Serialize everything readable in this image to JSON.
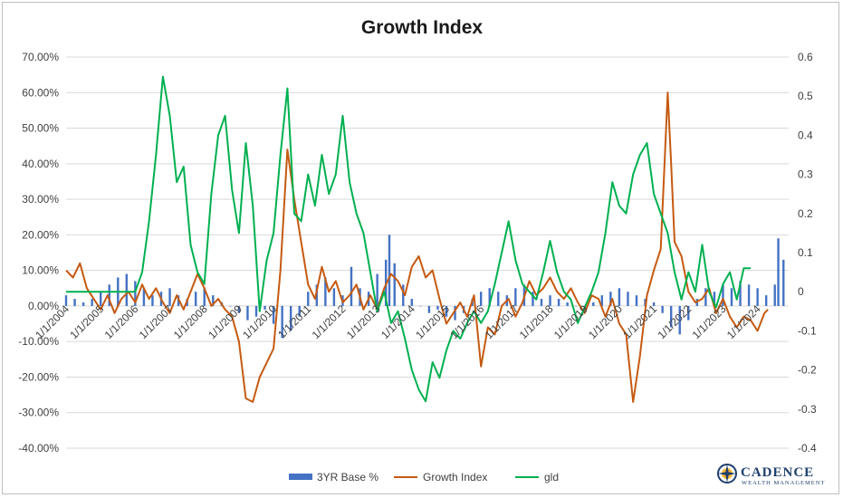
{
  "chart_data": {
    "type": "bar+line",
    "title": "Growth Index",
    "y_left": {
      "ticks": [
        "70.00%",
        "60.00%",
        "50.00%",
        "40.00%",
        "30.00%",
        "20.00%",
        "10.00%",
        "0.00%",
        "-10.00%",
        "-20.00%",
        "-30.00%",
        "-40.00%"
      ],
      "range": [
        -0.4,
        0.7
      ]
    },
    "y_right": {
      "ticks": [
        "0.6",
        "0.5",
        "0.4",
        "0.3",
        "0.2",
        "0.1",
        "0",
        "-0.1",
        "-0.2",
        "-0.3",
        "-0.4"
      ],
      "range": [
        -0.4,
        0.6
      ]
    },
    "x_ticks": [
      "1/1/2004",
      "1/1/2005",
      "1/1/2006",
      "1/1/2007",
      "1/1/2008",
      "1/1/2009",
      "1/1/2010",
      "1/1/2011",
      "1/1/2012",
      "1/1/2013",
      "1/1/2014",
      "1/1/2015",
      "1/1/2016",
      "1/1/2017",
      "1/1/2018",
      "1/1/2019",
      "1/1/2020",
      "1/1/2021",
      "1/1/2022",
      "1/1/2023",
      "1/1/2024"
    ],
    "x_range": [
      2004.0,
      2024.9
    ],
    "grid": true,
    "legend_position": "bottom",
    "series": [
      {
        "name": "3YR Base %",
        "type": "bar",
        "axis": "left",
        "color": "#4472c4",
        "points": [
          [
            2004.0,
            0.03
          ],
          [
            2004.25,
            0.02
          ],
          [
            2004.5,
            0.01
          ],
          [
            2004.75,
            0.02
          ],
          [
            2005.0,
            0.04
          ],
          [
            2005.25,
            0.06
          ],
          [
            2005.5,
            0.08
          ],
          [
            2005.75,
            0.09
          ],
          [
            2006.0,
            0.07
          ],
          [
            2006.25,
            0.05
          ],
          [
            2006.5,
            0.03
          ],
          [
            2006.75,
            0.04
          ],
          [
            2007.0,
            0.05
          ],
          [
            2007.25,
            0.03
          ],
          [
            2007.5,
            0.02
          ],
          [
            2007.75,
            0.04
          ],
          [
            2008.0,
            0.05
          ],
          [
            2008.25,
            0.03
          ],
          [
            2008.5,
            0.01
          ],
          [
            2008.75,
            0.0
          ],
          [
            2009.0,
            -0.02
          ],
          [
            2009.25,
            -0.04
          ],
          [
            2009.5,
            -0.03
          ],
          [
            2009.75,
            -0.01
          ],
          [
            2010.0,
            -0.05
          ],
          [
            2010.25,
            -0.09
          ],
          [
            2010.5,
            -0.07
          ],
          [
            2010.75,
            -0.03
          ],
          [
            2011.0,
            0.04
          ],
          [
            2011.25,
            0.06
          ],
          [
            2011.5,
            0.08
          ],
          [
            2011.75,
            0.05
          ],
          [
            2012.0,
            0.03
          ],
          [
            2012.25,
            0.11
          ],
          [
            2012.5,
            0.05
          ],
          [
            2012.75,
            0.04
          ],
          [
            2013.0,
            0.09
          ],
          [
            2013.25,
            0.13
          ],
          [
            2013.35,
            0.2
          ],
          [
            2013.5,
            0.12
          ],
          [
            2013.75,
            0.06
          ],
          [
            2014.0,
            0.02
          ],
          [
            2014.25,
            0.0
          ],
          [
            2014.5,
            -0.02
          ],
          [
            2014.75,
            -0.01
          ],
          [
            2015.0,
            -0.03
          ],
          [
            2015.25,
            -0.04
          ],
          [
            2015.5,
            -0.02
          ],
          [
            2015.75,
            0.02
          ],
          [
            2016.0,
            0.04
          ],
          [
            2016.25,
            0.05
          ],
          [
            2016.5,
            0.04
          ],
          [
            2016.75,
            0.03
          ],
          [
            2017.0,
            0.05
          ],
          [
            2017.25,
            0.06
          ],
          [
            2017.5,
            0.04
          ],
          [
            2017.75,
            0.02
          ],
          [
            2018.0,
            0.03
          ],
          [
            2018.25,
            0.02
          ],
          [
            2018.5,
            0.01
          ],
          [
            2018.75,
            0.0
          ],
          [
            2019.0,
            -0.02
          ],
          [
            2019.25,
            0.01
          ],
          [
            2019.5,
            0.03
          ],
          [
            2019.75,
            0.04
          ],
          [
            2020.0,
            0.05
          ],
          [
            2020.25,
            0.04
          ],
          [
            2020.5,
            0.03
          ],
          [
            2020.75,
            0.02
          ],
          [
            2021.0,
            0.01
          ],
          [
            2021.25,
            -0.02
          ],
          [
            2021.5,
            -0.06
          ],
          [
            2021.75,
            -0.08
          ],
          [
            2022.0,
            -0.04
          ],
          [
            2022.25,
            0.02
          ],
          [
            2022.5,
            0.05
          ],
          [
            2022.75,
            0.04
          ],
          [
            2023.0,
            0.06
          ],
          [
            2023.25,
            0.05
          ],
          [
            2023.5,
            0.07
          ],
          [
            2023.75,
            0.06
          ],
          [
            2024.0,
            0.05
          ],
          [
            2024.25,
            0.03
          ],
          [
            2024.5,
            0.06
          ],
          [
            2024.6,
            0.19
          ],
          [
            2024.75,
            0.13
          ]
        ]
      },
      {
        "name": "Growth Index",
        "type": "line",
        "axis": "left",
        "color": "#c55a11",
        "points": [
          [
            2004.0,
            0.1
          ],
          [
            2004.2,
            0.08
          ],
          [
            2004.4,
            0.12
          ],
          [
            2004.6,
            0.05
          ],
          [
            2004.8,
            0.02
          ],
          [
            2005.0,
            -0.01
          ],
          [
            2005.2,
            0.03
          ],
          [
            2005.4,
            -0.02
          ],
          [
            2005.6,
            0.02
          ],
          [
            2005.8,
            0.04
          ],
          [
            2006.0,
            0.01
          ],
          [
            2006.2,
            0.06
          ],
          [
            2006.4,
            0.02
          ],
          [
            2006.6,
            0.05
          ],
          [
            2006.8,
            0.01
          ],
          [
            2007.0,
            -0.02
          ],
          [
            2007.2,
            0.03
          ],
          [
            2007.4,
            -0.01
          ],
          [
            2007.6,
            0.04
          ],
          [
            2007.8,
            0.09
          ],
          [
            2008.0,
            0.05
          ],
          [
            2008.2,
            0.0
          ],
          [
            2008.4,
            0.02
          ],
          [
            2008.6,
            -0.01
          ],
          [
            2008.8,
            -0.03
          ],
          [
            2009.0,
            -0.1
          ],
          [
            2009.2,
            -0.26
          ],
          [
            2009.4,
            -0.27
          ],
          [
            2009.6,
            -0.2
          ],
          [
            2009.8,
            -0.16
          ],
          [
            2010.0,
            -0.12
          ],
          [
            2010.2,
            0.1
          ],
          [
            2010.4,
            0.44
          ],
          [
            2010.6,
            0.3
          ],
          [
            2010.8,
            0.18
          ],
          [
            2011.0,
            0.06
          ],
          [
            2011.2,
            0.02
          ],
          [
            2011.4,
            0.11
          ],
          [
            2011.6,
            0.04
          ],
          [
            2011.8,
            0.07
          ],
          [
            2012.0,
            0.01
          ],
          [
            2012.2,
            0.03
          ],
          [
            2012.4,
            0.06
          ],
          [
            2012.6,
            -0.01
          ],
          [
            2012.8,
            0.03
          ],
          [
            2013.0,
            -0.01
          ],
          [
            2013.2,
            0.05
          ],
          [
            2013.4,
            0.09
          ],
          [
            2013.6,
            0.07
          ],
          [
            2013.8,
            0.03
          ],
          [
            2014.0,
            0.11
          ],
          [
            2014.2,
            0.14
          ],
          [
            2014.4,
            0.08
          ],
          [
            2014.6,
            0.1
          ],
          [
            2014.8,
            0.02
          ],
          [
            2015.0,
            -0.05
          ],
          [
            2015.2,
            -0.02
          ],
          [
            2015.4,
            0.01
          ],
          [
            2015.6,
            -0.03
          ],
          [
            2015.8,
            0.03
          ],
          [
            2016.0,
            -0.17
          ],
          [
            2016.2,
            -0.06
          ],
          [
            2016.4,
            -0.08
          ],
          [
            2016.6,
            0.0
          ],
          [
            2016.8,
            0.02
          ],
          [
            2017.0,
            -0.03
          ],
          [
            2017.2,
            0.01
          ],
          [
            2017.4,
            0.07
          ],
          [
            2017.6,
            0.03
          ],
          [
            2017.8,
            0.05
          ],
          [
            2018.0,
            0.08
          ],
          [
            2018.2,
            0.04
          ],
          [
            2018.4,
            0.02
          ],
          [
            2018.6,
            0.05
          ],
          [
            2018.8,
            0.01
          ],
          [
            2019.0,
            -0.02
          ],
          [
            2019.2,
            0.03
          ],
          [
            2019.4,
            0.02
          ],
          [
            2019.6,
            -0.03
          ],
          [
            2019.8,
            0.02
          ],
          [
            2020.0,
            -0.05
          ],
          [
            2020.2,
            -0.08
          ],
          [
            2020.4,
            -0.27
          ],
          [
            2020.6,
            -0.14
          ],
          [
            2020.8,
            0.03
          ],
          [
            2021.0,
            0.1
          ],
          [
            2021.2,
            0.16
          ],
          [
            2021.4,
            0.6
          ],
          [
            2021.5,
            0.4
          ],
          [
            2021.6,
            0.18
          ],
          [
            2021.8,
            0.14
          ],
          [
            2022.0,
            0.04
          ],
          [
            2022.2,
            0.01
          ],
          [
            2022.4,
            0.02
          ],
          [
            2022.6,
            0.05
          ],
          [
            2022.8,
            -0.02
          ],
          [
            2023.0,
            0.02
          ],
          [
            2023.2,
            -0.03
          ],
          [
            2023.4,
            -0.06
          ],
          [
            2023.6,
            -0.03
          ],
          [
            2023.8,
            -0.04
          ],
          [
            2024.0,
            -0.07
          ],
          [
            2024.2,
            -0.02
          ],
          [
            2024.3,
            -0.01
          ]
        ]
      },
      {
        "name": "gld",
        "type": "line",
        "axis": "right",
        "color": "#00b050",
        "points": [
          [
            2004.0,
            0.0
          ],
          [
            2005.0,
            0.0
          ],
          [
            2006.0,
            0.0
          ],
          [
            2006.2,
            0.05
          ],
          [
            2006.4,
            0.18
          ],
          [
            2006.6,
            0.35
          ],
          [
            2006.8,
            0.55
          ],
          [
            2007.0,
            0.45
          ],
          [
            2007.2,
            0.28
          ],
          [
            2007.4,
            0.32
          ],
          [
            2007.6,
            0.12
          ],
          [
            2007.8,
            0.05
          ],
          [
            2008.0,
            0.02
          ],
          [
            2008.2,
            0.25
          ],
          [
            2008.4,
            0.4
          ],
          [
            2008.6,
            0.45
          ],
          [
            2008.8,
            0.26
          ],
          [
            2009.0,
            0.15
          ],
          [
            2009.2,
            0.38
          ],
          [
            2009.4,
            0.22
          ],
          [
            2009.6,
            -0.05
          ],
          [
            2009.8,
            0.08
          ],
          [
            2010.0,
            0.15
          ],
          [
            2010.2,
            0.35
          ],
          [
            2010.4,
            0.52
          ],
          [
            2010.6,
            0.2
          ],
          [
            2010.8,
            0.18
          ],
          [
            2011.0,
            0.3
          ],
          [
            2011.2,
            0.22
          ],
          [
            2011.4,
            0.35
          ],
          [
            2011.6,
            0.25
          ],
          [
            2011.8,
            0.3
          ],
          [
            2012.0,
            0.45
          ],
          [
            2012.2,
            0.28
          ],
          [
            2012.4,
            0.2
          ],
          [
            2012.6,
            0.15
          ],
          [
            2012.8,
            0.05
          ],
          [
            2013.0,
            -0.05
          ],
          [
            2013.2,
            0.0
          ],
          [
            2013.4,
            -0.08
          ],
          [
            2013.6,
            -0.05
          ],
          [
            2013.8,
            -0.12
          ],
          [
            2014.0,
            -0.2
          ],
          [
            2014.2,
            -0.25
          ],
          [
            2014.4,
            -0.28
          ],
          [
            2014.6,
            -0.18
          ],
          [
            2014.8,
            -0.22
          ],
          [
            2015.0,
            -0.15
          ],
          [
            2015.2,
            -0.1
          ],
          [
            2015.4,
            -0.12
          ],
          [
            2015.6,
            -0.08
          ],
          [
            2015.8,
            -0.05
          ],
          [
            2016.0,
            -0.08
          ],
          [
            2016.2,
            -0.05
          ],
          [
            2016.4,
            0.02
          ],
          [
            2016.6,
            0.1
          ],
          [
            2016.8,
            0.18
          ],
          [
            2017.0,
            0.08
          ],
          [
            2017.2,
            0.02
          ],
          [
            2017.4,
            0.0
          ],
          [
            2017.6,
            -0.02
          ],
          [
            2017.8,
            0.05
          ],
          [
            2018.0,
            0.13
          ],
          [
            2018.2,
            0.05
          ],
          [
            2018.4,
            0.0
          ],
          [
            2018.6,
            -0.02
          ],
          [
            2018.8,
            -0.08
          ],
          [
            2019.0,
            -0.04
          ],
          [
            2019.2,
            0.0
          ],
          [
            2019.4,
            0.05
          ],
          [
            2019.6,
            0.15
          ],
          [
            2019.8,
            0.28
          ],
          [
            2020.0,
            0.22
          ],
          [
            2020.2,
            0.2
          ],
          [
            2020.4,
            0.3
          ],
          [
            2020.6,
            0.35
          ],
          [
            2020.8,
            0.38
          ],
          [
            2021.0,
            0.25
          ],
          [
            2021.2,
            0.2
          ],
          [
            2021.4,
            0.15
          ],
          [
            2021.6,
            0.05
          ],
          [
            2021.8,
            -0.02
          ],
          [
            2022.0,
            0.05
          ],
          [
            2022.2,
            0.0
          ],
          [
            2022.4,
            0.12
          ],
          [
            2022.6,
            0.0
          ],
          [
            2022.8,
            -0.04
          ],
          [
            2023.0,
            0.02
          ],
          [
            2023.2,
            0.05
          ],
          [
            2023.4,
            -0.02
          ],
          [
            2023.6,
            0.06
          ],
          [
            2023.8,
            0.06
          ]
        ]
      }
    ]
  },
  "logo": {
    "name": "CADENCE",
    "tagline": "WEALTH MANAGEMENT"
  }
}
